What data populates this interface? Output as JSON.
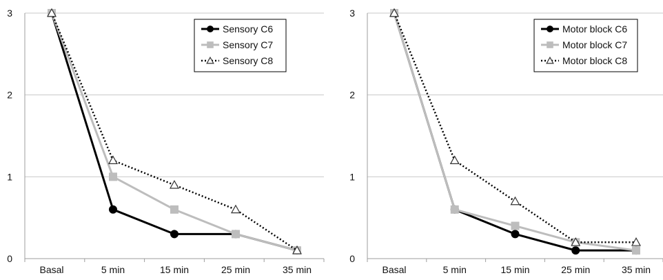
{
  "chart_data": [
    {
      "type": "line",
      "categories": [
        "Basal",
        "5 min",
        "15 min",
        "25 min",
        "35 min"
      ],
      "ylim": [
        0,
        3
      ],
      "yticks": [
        0,
        1,
        2,
        3
      ],
      "grid": true,
      "legend_position": "top-right",
      "series": [
        {
          "name": "Sensory C6",
          "values": [
            3,
            0.6,
            0.3,
            0.3,
            0.1
          ],
          "color": "#000000",
          "line": "solid",
          "marker": "circle"
        },
        {
          "name": "Sensory C7",
          "values": [
            3,
            1.0,
            0.6,
            0.3,
            0.1
          ],
          "color": "#bdbdbd",
          "line": "solid",
          "marker": "square"
        },
        {
          "name": "Sensory C8",
          "values": [
            3,
            1.2,
            0.9,
            0.6,
            0.1
          ],
          "color": "#000000",
          "line": "dotted",
          "marker": "triangle"
        }
      ]
    },
    {
      "type": "line",
      "categories": [
        "Basal",
        "5 min",
        "15 min",
        "25 min",
        "35 min"
      ],
      "ylim": [
        0,
        3
      ],
      "yticks": [
        0,
        1,
        2,
        3
      ],
      "grid": true,
      "legend_position": "top-right",
      "series": [
        {
          "name": "Motor block C6",
          "values": [
            3,
            0.6,
            0.3,
            0.1,
            0.1
          ],
          "color": "#000000",
          "line": "solid",
          "marker": "circle"
        },
        {
          "name": "Motor block C7",
          "values": [
            3,
            0.6,
            0.4,
            0.2,
            0.1
          ],
          "color": "#bdbdbd",
          "line": "solid",
          "marker": "square"
        },
        {
          "name": "Motor block C8",
          "values": [
            3,
            1.2,
            0.7,
            0.2,
            0.2
          ],
          "color": "#000000",
          "line": "dotted",
          "marker": "triangle"
        }
      ]
    }
  ]
}
